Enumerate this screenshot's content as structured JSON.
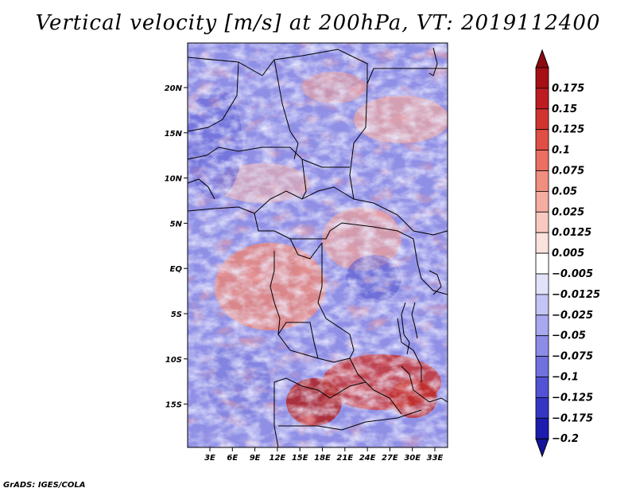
{
  "title": "Vertical velocity [m/s] at 200hPa, VT: 2019112400",
  "footer": "GrADS: IGES/COLA",
  "axes": {
    "lat_labels": [
      "20N",
      "15N",
      "10N",
      "5N",
      "EQ",
      "5S",
      "10S",
      "15S"
    ],
    "lon_labels": [
      "3E",
      "6E",
      "9E",
      "12E",
      "15E",
      "18E",
      "21E",
      "24E",
      "27E",
      "30E",
      "33E"
    ]
  },
  "colorbar": {
    "levels": [
      {
        "label": "0.175",
        "color": "#a50f15"
      },
      {
        "label": "0.15",
        "color": "#bd1d22"
      },
      {
        "label": "0.125",
        "color": "#d1342f"
      },
      {
        "label": "0.1",
        "color": "#e04f45"
      },
      {
        "label": "0.075",
        "color": "#ea6f62"
      },
      {
        "label": "0.05",
        "color": "#f08e80"
      },
      {
        "label": "0.025",
        "color": "#f5ada2"
      },
      {
        "label": "0.0125",
        "color": "#f8c9c0"
      },
      {
        "label": "0.005",
        "color": "#fbe2dc"
      },
      {
        "label": "−0.005",
        "color": "#ffffff"
      },
      {
        "label": "−0.0125",
        "color": "#e2e2fb"
      },
      {
        "label": "−0.025",
        "color": "#c4c4f5"
      },
      {
        "label": "−0.05",
        "color": "#a8a8f0"
      },
      {
        "label": "−0.075",
        "color": "#8c8ce8"
      },
      {
        "label": "−0.1",
        "color": "#7070df"
      },
      {
        "label": "−0.125",
        "color": "#5252d4"
      },
      {
        "label": "−0.175",
        "color": "#3535c4"
      },
      {
        "label": "−0.2",
        "color": "#1c1caf"
      }
    ],
    "top_color": "#8c0a12",
    "bottom_color": "#14149a"
  }
}
